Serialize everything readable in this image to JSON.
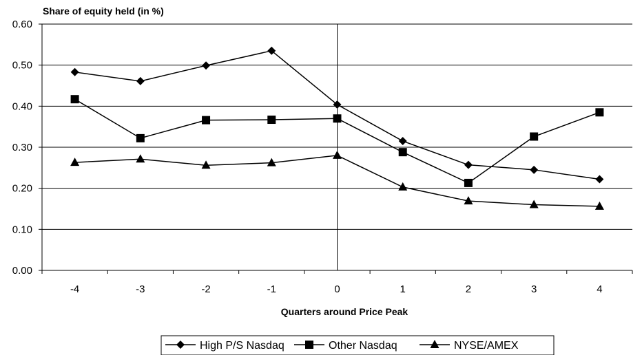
{
  "chart_data": {
    "type": "line",
    "ylabel": "Share of equity held (in %)",
    "xlabel": "Quarters around Price Peak",
    "categories": [
      "-4",
      "-3",
      "-2",
      "-1",
      "0",
      "1",
      "2",
      "3",
      "4"
    ],
    "ylim": [
      0,
      0.6
    ],
    "yticks": [
      "0.00",
      "0.10",
      "0.20",
      "0.30",
      "0.40",
      "0.50",
      "0.60"
    ],
    "grid": true,
    "vertical_reference_at": "0",
    "legend_position": "bottom",
    "series": [
      {
        "name": "High P/S Nasdaq",
        "marker": "diamond",
        "values": [
          0.483,
          0.461,
          0.499,
          0.535,
          0.404,
          0.315,
          0.257,
          0.245,
          0.222
        ]
      },
      {
        "name": "Other Nasdaq",
        "marker": "square",
        "values": [
          0.417,
          0.322,
          0.366,
          0.367,
          0.37,
          0.288,
          0.213,
          0.326,
          0.385
        ]
      },
      {
        "name": "NYSE/AMEX",
        "marker": "triangle",
        "values": [
          0.263,
          0.271,
          0.256,
          0.262,
          0.28,
          0.203,
          0.169,
          0.16,
          0.156
        ]
      }
    ],
    "line_color": "#000000"
  }
}
